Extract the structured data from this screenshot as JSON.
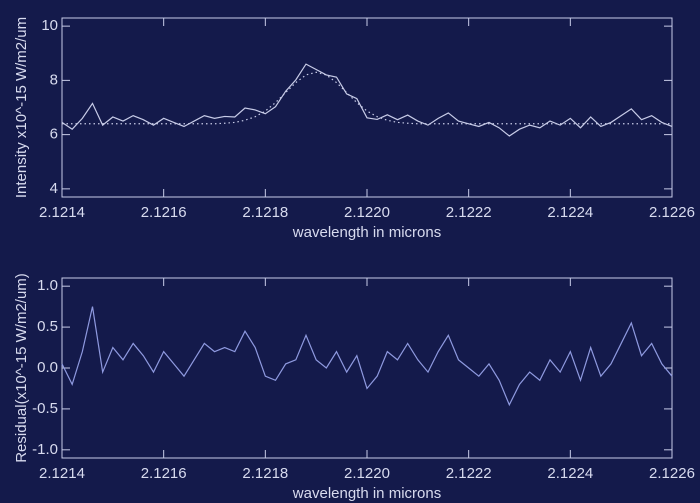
{
  "chart_data": [
    {
      "type": "line",
      "x_label": "wavelength in microns",
      "y_label": "Intensity x10^-15 W/m2/um",
      "x": [
        2.1214,
        2.12142,
        2.12144,
        2.12146,
        2.12148,
        2.1215,
        2.12152,
        2.12154,
        2.12156,
        2.12158,
        2.1216,
        2.12162,
        2.12164,
        2.12166,
        2.12168,
        2.1217,
        2.12172,
        2.12174,
        2.12176,
        2.12178,
        2.1218,
        2.12182,
        2.12184,
        2.12186,
        2.12188,
        2.1219,
        2.12192,
        2.12194,
        2.12196,
        2.12198,
        2.122,
        2.12202,
        2.12204,
        2.12206,
        2.12208,
        2.1221,
        2.12212,
        2.12214,
        2.12216,
        2.12218,
        2.1222,
        2.12222,
        2.12224,
        2.12226,
        2.12228,
        2.1223,
        2.12232,
        2.12234,
        2.12236,
        2.12238,
        2.1224,
        2.12242,
        2.12244,
        2.12246,
        2.12248,
        2.1225,
        2.12252,
        2.12254,
        2.12256,
        2.12258,
        2.1226
      ],
      "series": [
        {
          "color": "#c8cce8",
          "linestyle": "solid",
          "values": [
            6.45,
            6.2,
            6.6,
            7.15,
            6.35,
            6.65,
            6.5,
            6.7,
            6.55,
            6.35,
            6.6,
            6.45,
            6.3,
            6.5,
            6.7,
            6.6,
            6.67,
            6.65,
            6.98,
            6.91,
            6.77,
            7.03,
            7.6,
            8.02,
            8.6,
            8.4,
            8.2,
            8.12,
            7.5,
            7.33,
            6.62,
            6.56,
            6.73,
            6.55,
            6.72,
            6.5,
            6.35,
            6.6,
            6.8,
            6.5,
            6.4,
            6.3,
            6.45,
            6.25,
            5.95,
            6.2,
            6.35,
            6.25,
            6.5,
            6.35,
            6.6,
            6.25,
            6.65,
            6.3,
            6.45,
            6.7,
            6.95,
            6.55,
            6.7,
            6.45,
            6.3
          ]
        },
        {
          "color": "#c8cce8",
          "linestyle": "dotted",
          "values": [
            6.4,
            6.4,
            6.4,
            6.4,
            6.4,
            6.4,
            6.4,
            6.4,
            6.4,
            6.4,
            6.4,
            6.4,
            6.4,
            6.4,
            6.4,
            6.4,
            6.42,
            6.45,
            6.53,
            6.66,
            6.87,
            7.18,
            7.55,
            7.92,
            8.2,
            8.3,
            8.2,
            7.92,
            7.55,
            7.18,
            6.87,
            6.66,
            6.53,
            6.45,
            6.42,
            6.4,
            6.4,
            6.4,
            6.4,
            6.4,
            6.4,
            6.4,
            6.4,
            6.4,
            6.4,
            6.4,
            6.4,
            6.4,
            6.4,
            6.4,
            6.4,
            6.4,
            6.4,
            6.4,
            6.4,
            6.4,
            6.4,
            6.4,
            6.4,
            6.4,
            6.4
          ]
        }
      ],
      "xlim": [
        2.1214,
        2.1226
      ],
      "xticks": [
        2.1214,
        2.1216,
        2.1218,
        {
          "value": 2.122,
          "label": "2.1220"
        },
        2.1222,
        2.1224,
        2.1226
      ],
      "ylim": [
        3.7,
        10.3
      ],
      "yticks": [
        4,
        6,
        8,
        10
      ]
    },
    {
      "type": "line",
      "x_label": "wavelength in microns",
      "y_label": "Residual(x10^-15 W/m2/um)",
      "x": [
        2.1214,
        2.12142,
        2.12144,
        2.12146,
        2.12148,
        2.1215,
        2.12152,
        2.12154,
        2.12156,
        2.12158,
        2.1216,
        2.12162,
        2.12164,
        2.12166,
        2.12168,
        2.1217,
        2.12172,
        2.12174,
        2.12176,
        2.12178,
        2.1218,
        2.12182,
        2.12184,
        2.12186,
        2.12188,
        2.1219,
        2.12192,
        2.12194,
        2.12196,
        2.12198,
        2.122,
        2.12202,
        2.12204,
        2.12206,
        2.12208,
        2.1221,
        2.12212,
        2.12214,
        2.12216,
        2.12218,
        2.1222,
        2.12222,
        2.12224,
        2.12226,
        2.12228,
        2.1223,
        2.12232,
        2.12234,
        2.12236,
        2.12238,
        2.1224,
        2.12242,
        2.12244,
        2.12246,
        2.12248,
        2.1225,
        2.12252,
        2.12254,
        2.12256,
        2.12258,
        2.1226
      ],
      "series": [
        {
          "color": "#8f9ae0",
          "linestyle": "solid",
          "values": [
            0.05,
            -0.2,
            0.2,
            0.75,
            -0.05,
            0.25,
            0.1,
            0.3,
            0.15,
            -0.05,
            0.2,
            0.05,
            -0.1,
            0.1,
            0.3,
            0.2,
            0.25,
            0.2,
            0.45,
            0.25,
            -0.1,
            -0.15,
            0.05,
            0.1,
            0.4,
            0.1,
            0.0,
            0.2,
            -0.05,
            0.15,
            -0.25,
            -0.1,
            0.2,
            0.1,
            0.3,
            0.1,
            -0.05,
            0.2,
            0.4,
            0.1,
            0.0,
            -0.1,
            0.05,
            -0.15,
            -0.45,
            -0.2,
            -0.05,
            -0.15,
            0.1,
            -0.05,
            0.2,
            -0.15,
            0.25,
            -0.1,
            0.05,
            0.3,
            0.55,
            0.15,
            0.3,
            0.05,
            -0.1
          ]
        }
      ],
      "xlim": [
        2.1214,
        2.1226
      ],
      "xticks": [
        2.1214,
        2.1216,
        2.1218,
        {
          "value": 2.122,
          "label": "2.1220"
        },
        2.1222,
        2.1224,
        2.1226
      ],
      "ylim": [
        -1.1,
        1.1
      ],
      "yticks": [
        {
          "value": 1,
          "label": "1.0"
        },
        0.5,
        {
          "value": 0,
          "label": "0.0"
        },
        -0.5,
        {
          "value": -1,
          "label": "-1.0"
        }
      ]
    }
  ]
}
